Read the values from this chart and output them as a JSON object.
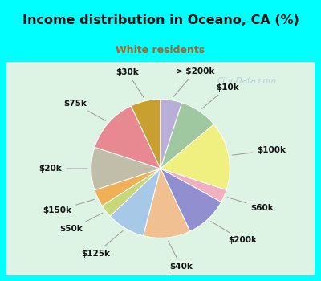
{
  "title": "Income distribution in Oceano, CA (%)",
  "subtitle": "White residents",
  "title_color": "#111111",
  "subtitle_color": "#b06020",
  "background_outer": "#00ffff",
  "background_inner_color1": "#d8f0e0",
  "background_inner_color2": "#f0f8f0",
  "watermark": "City-Data.com",
  "labels": [
    "> $200k",
    "$10k",
    "$100k",
    "$60k",
    "$200k",
    "$40k",
    "$125k",
    "$50k",
    "$150k",
    "$20k",
    "$75k",
    "$30k"
  ],
  "sizes": [
    5,
    9,
    16,
    3,
    10,
    11,
    9,
    3,
    4,
    10,
    13,
    7
  ],
  "colors": [
    "#b8aed8",
    "#a0c8a0",
    "#f0f080",
    "#f0b0c0",
    "#9090d0",
    "#f0c090",
    "#a8c8e8",
    "#c8d878",
    "#f0b058",
    "#c0bda8",
    "#e88890",
    "#c8a030"
  ],
  "startangle": 90
}
